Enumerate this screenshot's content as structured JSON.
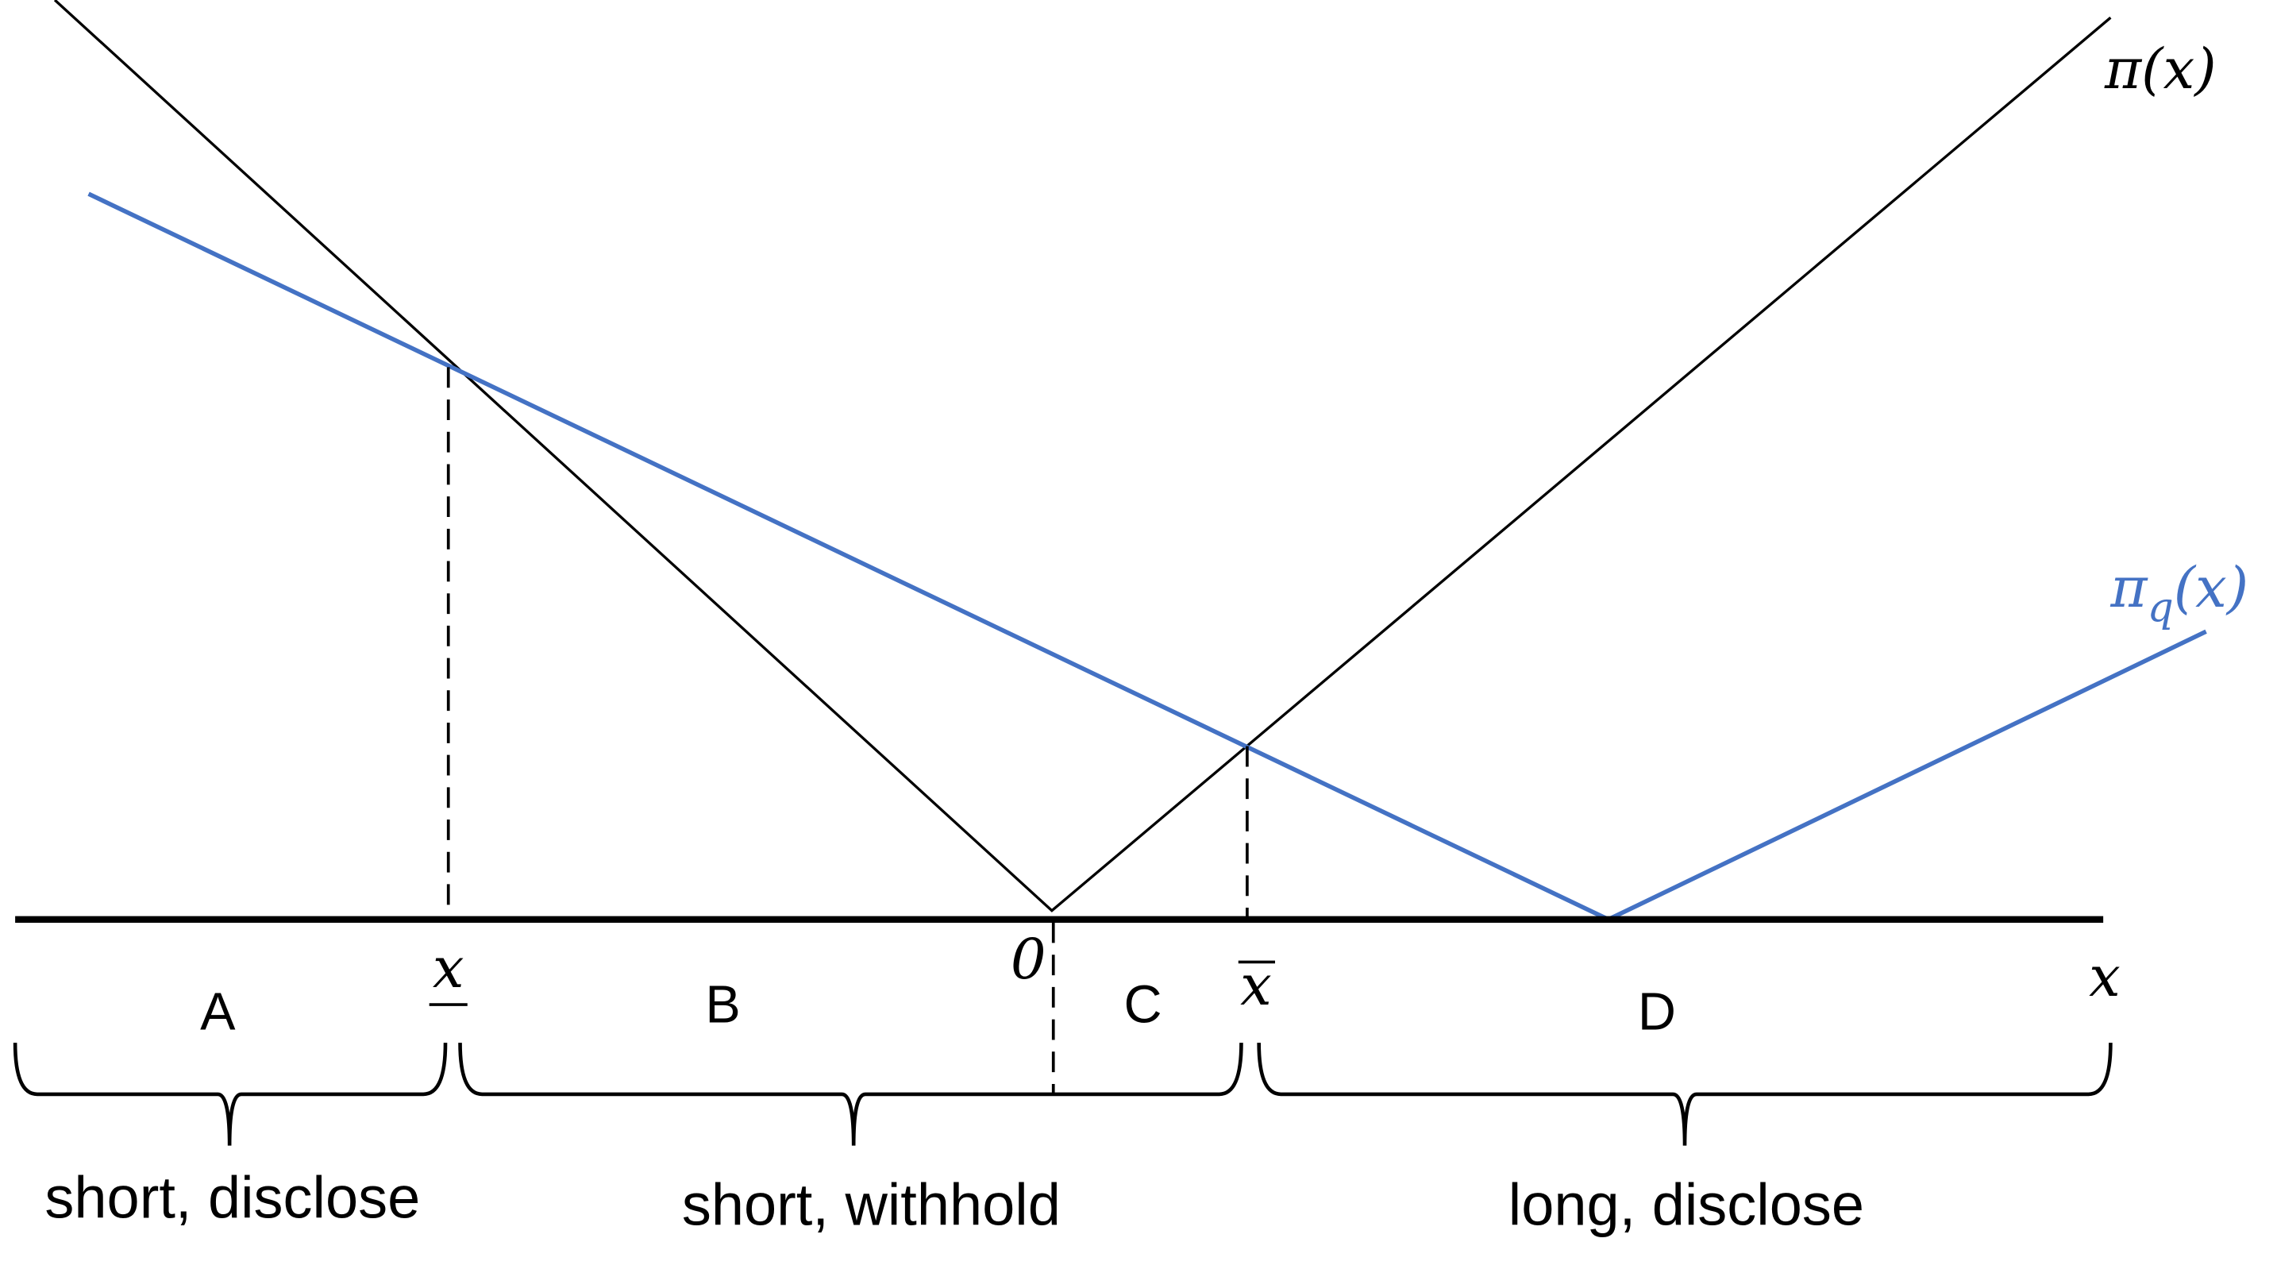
{
  "curves": {
    "pi": {
      "label": "π(x)"
    },
    "pi_q": {
      "symbol": "π",
      "subscript": "q",
      "argument": "(x)"
    }
  },
  "axis": {
    "label": "x",
    "origin": "0"
  },
  "thresholds": {
    "lower": "x",
    "upper": "x"
  },
  "regions": [
    {
      "label": "A"
    },
    {
      "label": "B"
    },
    {
      "label": "C"
    },
    {
      "label": "D"
    }
  ],
  "groups": [
    {
      "label": "short, disclose"
    },
    {
      "label": "short, withhold"
    },
    {
      "label": "long, disclose"
    }
  ]
}
